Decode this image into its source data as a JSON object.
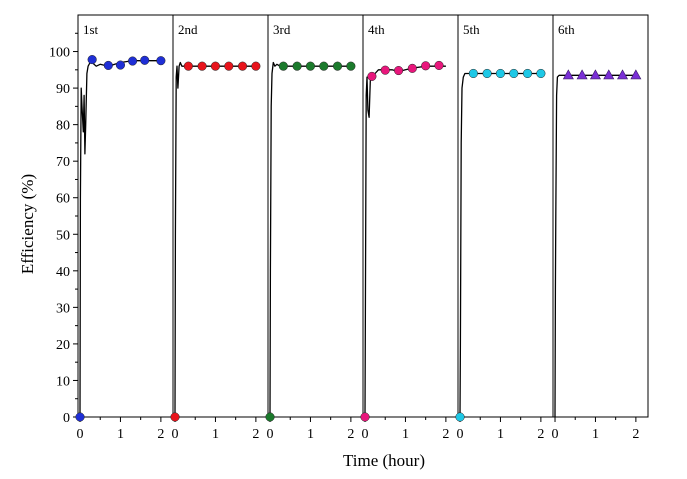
{
  "chart_data": {
    "type": "line",
    "title": "",
    "xlabel": "Time (hour)",
    "ylabel": "Efficiency (%)",
    "ylim": [
      0,
      110
    ],
    "yticks": [
      0,
      10,
      20,
      30,
      40,
      50,
      60,
      70,
      80,
      90,
      100
    ],
    "xlim_per_panel": [
      -0.05,
      2.3
    ],
    "xticks": [
      0,
      1,
      2
    ],
    "panels": [
      {
        "label": "1st",
        "marker": "circle",
        "color": "#1f2fd6",
        "curve_x": [
          0,
          0.01,
          0.03,
          0.05,
          0.08,
          0.1,
          0.12,
          0.14,
          0.17,
          0.2,
          0.25,
          0.3,
          0.4,
          0.5,
          0.7,
          1.0,
          1.3,
          1.6,
          2.0
        ],
        "curve_y": [
          0,
          60,
          90,
          85,
          78,
          88,
          72,
          80,
          94,
          96,
          97,
          97,
          96,
          96.5,
          96,
          97,
          97.5,
          97.5,
          97.5
        ],
        "points_x": [
          0,
          0.3,
          0.7,
          1.0,
          1.3,
          1.6,
          2.0
        ],
        "points_y": [
          0,
          97.8,
          96.2,
          96.3,
          97.4,
          97.6,
          97.5
        ]
      },
      {
        "label": "2nd",
        "marker": "circle",
        "color": "#e8141c",
        "curve_x": [
          0,
          0.01,
          0.03,
          0.05,
          0.07,
          0.1,
          0.13,
          0.17,
          0.25,
          0.5,
          1.0,
          1.5,
          2.0
        ],
        "curve_y": [
          0,
          50,
          93,
          96,
          90,
          96,
          97,
          96,
          96,
          96,
          96,
          96,
          96
        ],
        "points_x": [
          0,
          0.33,
          0.67,
          1.0,
          1.33,
          1.67,
          2.0
        ],
        "points_y": [
          0,
          96,
          96,
          96,
          96,
          96,
          96
        ]
      },
      {
        "label": "3rd",
        "marker": "circle",
        "color": "#1b7a2c",
        "curve_x": [
          0,
          0.01,
          0.03,
          0.05,
          0.08,
          0.12,
          0.17,
          0.25,
          0.5,
          1.0,
          1.5,
          2.0
        ],
        "curve_y": [
          0,
          40,
          85,
          94,
          97,
          96,
          96.5,
          96,
          96,
          96,
          96,
          96
        ],
        "points_x": [
          0,
          0.33,
          0.67,
          1.0,
          1.33,
          1.67,
          2.0
        ],
        "points_y": [
          0,
          96,
          96,
          96,
          96,
          96,
          96
        ]
      },
      {
        "label": "4th",
        "marker": "circle",
        "color": "#e8177c",
        "curve_x": [
          0,
          0.01,
          0.03,
          0.05,
          0.07,
          0.1,
          0.13,
          0.17,
          0.25,
          0.33,
          0.5,
          0.67,
          0.83,
          1.0,
          1.2,
          1.5,
          1.67,
          2.0
        ],
        "curve_y": [
          0,
          30,
          88,
          93,
          84,
          82,
          92,
          93,
          94,
          95,
          95,
          95,
          94.5,
          95,
          95.5,
          96,
          96,
          96
        ],
        "points_x": [
          0,
          0.17,
          0.5,
          0.83,
          1.17,
          1.5,
          1.83
        ],
        "points_y": [
          0,
          93.2,
          94.9,
          94.8,
          95.4,
          96.1,
          96.2
        ]
      },
      {
        "label": "5th",
        "marker": "circle",
        "color": "#1ec8e6",
        "curve_x": [
          0,
          0.01,
          0.03,
          0.05,
          0.08,
          0.12,
          0.17,
          0.25,
          0.5,
          1.0,
          1.5,
          2.0
        ],
        "curve_y": [
          0,
          20,
          75,
          90,
          93,
          94,
          94,
          94,
          94,
          94,
          94,
          94
        ],
        "points_x": [
          0,
          0.33,
          0.67,
          1.0,
          1.33,
          1.67,
          2.0
        ],
        "points_y": [
          0,
          94,
          94,
          94,
          94,
          94,
          94
        ]
      },
      {
        "label": "6th",
        "marker": "triangle",
        "color": "#7a2fd6",
        "curve_x": [
          0,
          0.01,
          0.02,
          0.04,
          0.06,
          0.1,
          0.5,
          1.0,
          1.5,
          2.0
        ],
        "curve_y": [
          0,
          35,
          55,
          88,
          93,
          93.5,
          93.5,
          93.5,
          93.5,
          93.5
        ],
        "points_x": [
          0.33,
          0.67,
          1.0,
          1.33,
          1.67,
          2.0
        ],
        "points_y": [
          93.6,
          93.6,
          93.6,
          93.6,
          93.6,
          93.6
        ]
      }
    ]
  }
}
